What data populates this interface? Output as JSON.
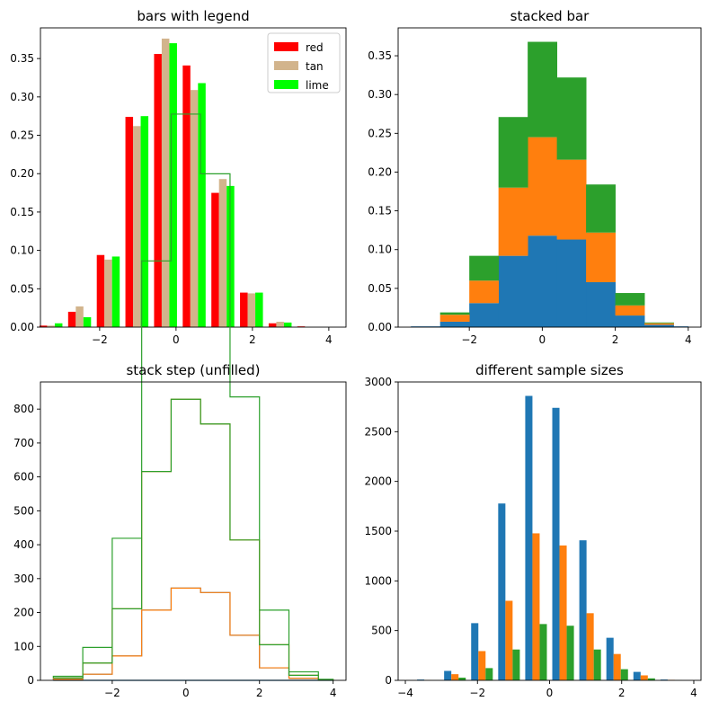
{
  "chart_data": [
    {
      "type": "bar",
      "title": "bars with legend",
      "xlim": [
        -3.55,
        4.45
      ],
      "ylim": [
        0,
        0.39
      ],
      "xticks": [
        -2,
        0,
        2,
        4
      ],
      "yticks": [
        0,
        0.05,
        0.1,
        0.15,
        0.2,
        0.25,
        0.3,
        0.35
      ],
      "bin_edges": [
        -3.65,
        -2.9,
        -2.15,
        -1.4,
        -0.65,
        0.1,
        0.85,
        1.6,
        2.35,
        3.1,
        3.85
      ],
      "legend_position": "upper right",
      "series": [
        {
          "name": "red",
          "color": "#ff0000",
          "values": [
            0.002,
            0.02,
            0.094,
            0.274,
            0.356,
            0.341,
            0.175,
            0.045,
            0.005,
            0.001
          ]
        },
        {
          "name": "tan",
          "color": "#d2b48c",
          "values": [
            0.002,
            0.027,
            0.088,
            0.262,
            0.376,
            0.309,
            0.193,
            0.044,
            0.007,
            0.0
          ]
        },
        {
          "name": "lime",
          "color": "#00ff00",
          "values": [
            0.005,
            0.013,
            0.092,
            0.275,
            0.37,
            0.318,
            0.184,
            0.045,
            0.006,
            0.0
          ]
        }
      ]
    },
    {
      "type": "bar",
      "subtype": "stacked",
      "title": "stacked bar",
      "xlim": [
        -3.95,
        4.35
      ],
      "ylim": [
        0,
        0.386
      ],
      "xticks": [
        -2,
        0,
        2,
        4
      ],
      "yticks": [
        0,
        0.05,
        0.1,
        0.15,
        0.2,
        0.25,
        0.3,
        0.35
      ],
      "bin_edges": [
        -3.6,
        -2.8,
        -2.0,
        -1.2,
        -0.4,
        0.4,
        1.2,
        2.0,
        2.8,
        3.6,
        4.0
      ],
      "series": [
        {
          "color": "#1f77b4",
          "values": [
            0.001,
            0.007,
            0.031,
            0.092,
            0.118,
            0.113,
            0.058,
            0.015,
            0.003,
            0.001
          ]
        },
        {
          "color": "#ff7f0e",
          "values": [
            0.0,
            0.009,
            0.029,
            0.088,
            0.127,
            0.103,
            0.064,
            0.013,
            0.002,
            0.0
          ]
        },
        {
          "color": "#2ca02c",
          "values": [
            0.0,
            0.003,
            0.032,
            0.091,
            0.123,
            0.106,
            0.062,
            0.016,
            0.001,
            0.0
          ]
        }
      ]
    },
    {
      "type": "line",
      "subtype": "step",
      "title": "stack step (unfilled)",
      "xlim": [
        -3.95,
        4.35
      ],
      "ylim": [
        0,
        880
      ],
      "xticks": [
        -2,
        0,
        2,
        4
      ],
      "yticks": [
        0,
        100,
        200,
        300,
        400,
        500,
        600,
        700,
        800
      ],
      "bin_edges": [
        -3.6,
        -2.8,
        -2.0,
        -1.2,
        -0.4,
        0.4,
        1.2,
        2.0,
        2.8,
        3.6,
        4.0
      ],
      "series": [
        {
          "color": "#1f77b4",
          "values": [
            3,
            18,
            72,
            207,
            272,
            259,
            133,
            37,
            6,
            1
          ]
        },
        {
          "color": "#ff7f0e",
          "values": [
            4,
            33,
            139,
            409,
            557,
            497,
            281,
            68,
            9,
            1
          ]
        },
        {
          "color": "#2ca02c",
          "values": [
            5,
            46,
            208,
            621,
            841,
            738,
            422,
            102,
            10,
            1
          ]
        }
      ]
    },
    {
      "type": "bar",
      "title": "different sample sizes",
      "xlim": [
        -4.2,
        4.2
      ],
      "ylim": [
        0,
        3000
      ],
      "xticks": [
        -4,
        -2,
        0,
        2,
        4
      ],
      "yticks": [
        0,
        500,
        1000,
        1500,
        2000,
        2500,
        3000
      ],
      "bin_edges": [
        -3.75,
        -3.0,
        -2.25,
        -1.5,
        -0.75,
        0.0,
        0.75,
        1.5,
        2.25,
        3.0,
        3.75
      ],
      "series": [
        {
          "color": "#1f77b4",
          "values": [
            8,
            95,
            575,
            1778,
            2860,
            2740,
            1408,
            428,
            85,
            8
          ]
        },
        {
          "color": "#ff7f0e",
          "values": [
            3,
            62,
            294,
            800,
            1478,
            1356,
            675,
            265,
            50,
            5
          ]
        },
        {
          "color": "#2ca02c",
          "values": [
            1,
            27,
            123,
            310,
            566,
            549,
            310,
            112,
            20,
            2
          ]
        }
      ]
    }
  ]
}
